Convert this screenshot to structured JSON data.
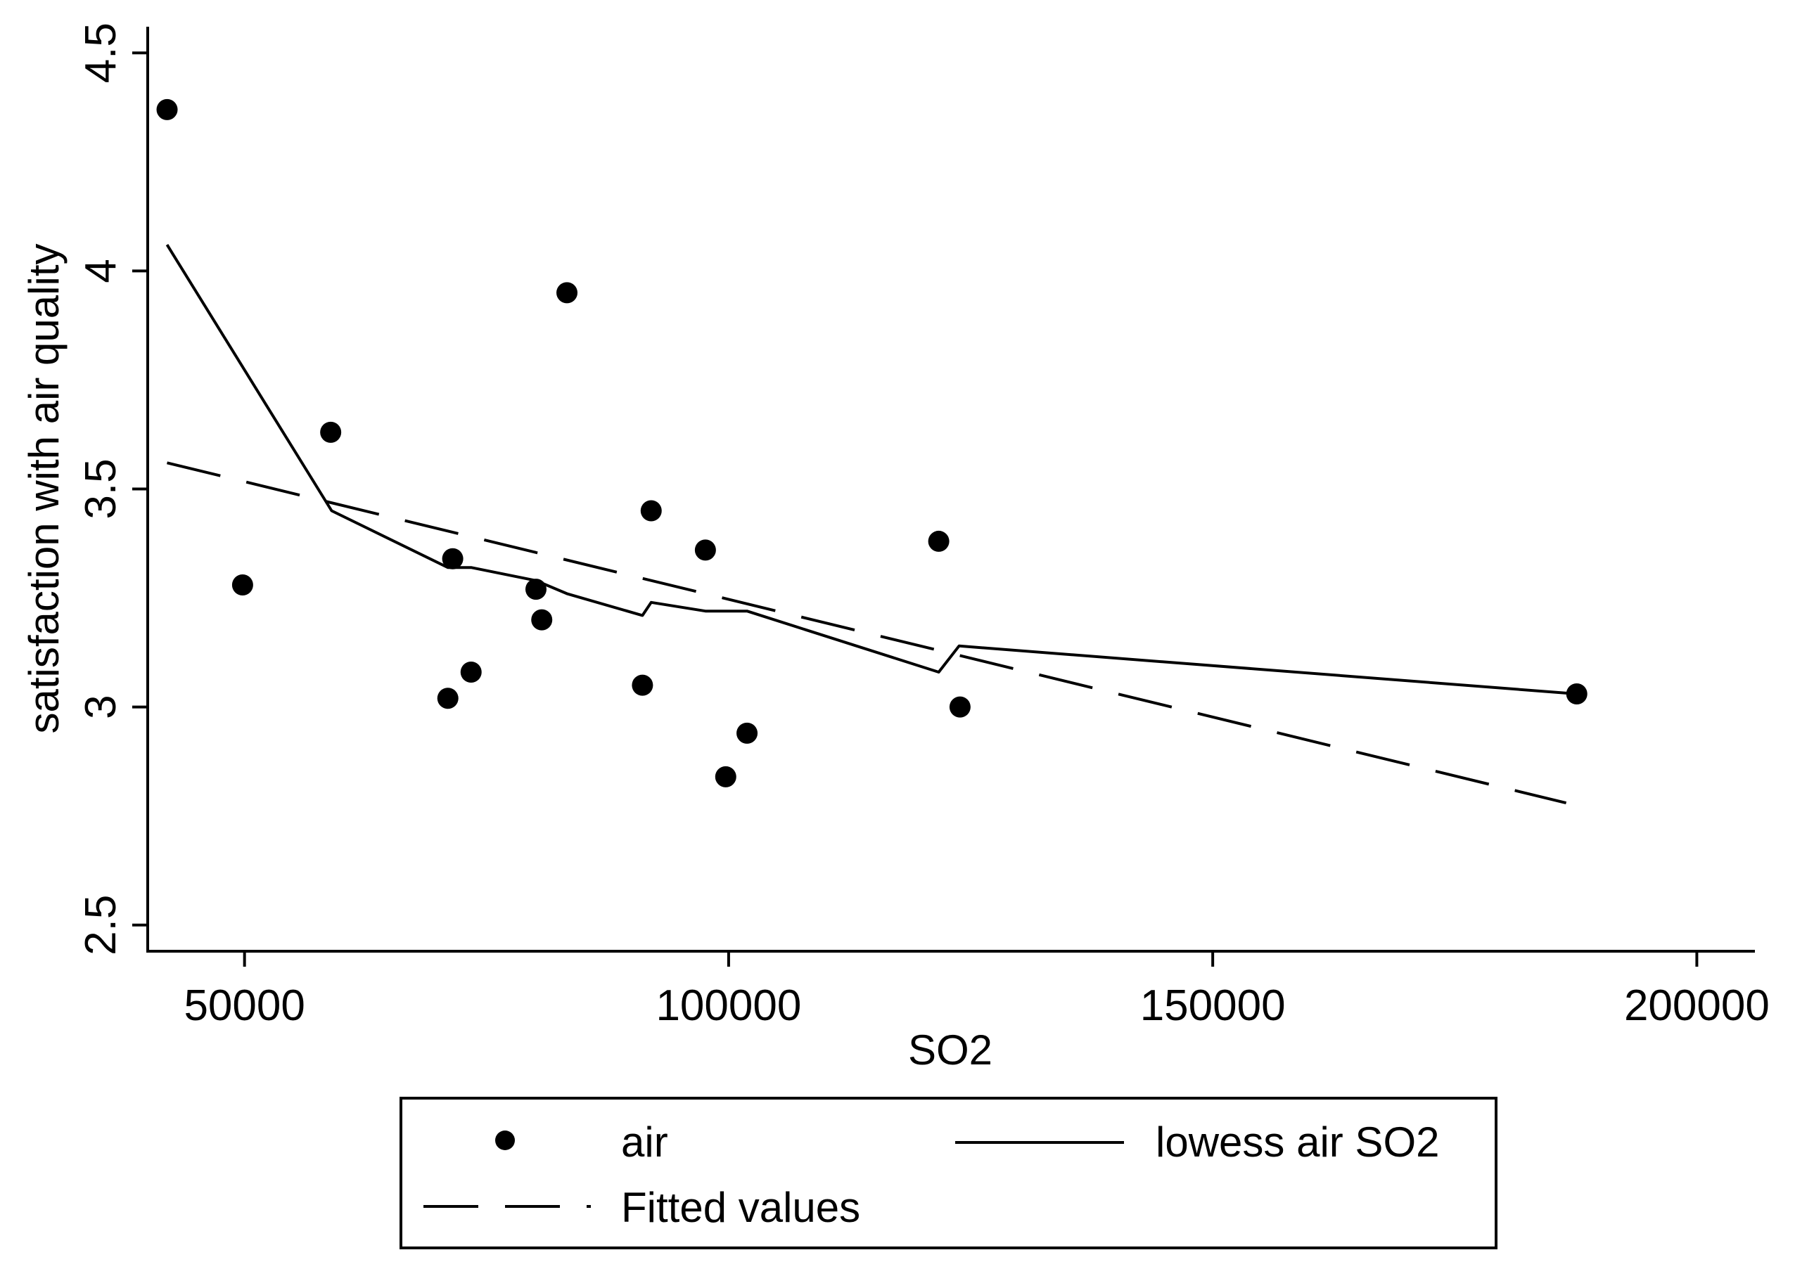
{
  "chart_data": {
    "type": "scatter",
    "title": "",
    "xlabel": "SO2",
    "ylabel": "satisfaction with air quality",
    "xlim": [
      40000,
      206000
    ],
    "ylim": [
      2.44,
      4.56
    ],
    "xticks": [
      50000,
      100000,
      150000,
      200000
    ],
    "xtick_labels": [
      "50000",
      "100000",
      "150000",
      "200000"
    ],
    "yticks": [
      2.5,
      3,
      3.5,
      4,
      4.5
    ],
    "ytick_labels": [
      "2.5",
      "3",
      "3.5",
      "4",
      "4.5"
    ],
    "grid": false,
    "legend_position": "bottom",
    "series": [
      {
        "name": "air",
        "kind": "scatter",
        "points": [
          {
            "x": 42000,
            "y": 4.37
          },
          {
            "x": 49800,
            "y": 3.28
          },
          {
            "x": 58900,
            "y": 3.63
          },
          {
            "x": 71000,
            "y": 3.02
          },
          {
            "x": 71500,
            "y": 3.34
          },
          {
            "x": 73400,
            "y": 3.08
          },
          {
            "x": 80100,
            "y": 3.27
          },
          {
            "x": 80700,
            "y": 3.2
          },
          {
            "x": 83300,
            "y": 3.95
          },
          {
            "x": 91100,
            "y": 3.05
          },
          {
            "x": 92000,
            "y": 3.45
          },
          {
            "x": 97600,
            "y": 3.36
          },
          {
            "x": 99700,
            "y": 2.84
          },
          {
            "x": 101900,
            "y": 2.94
          },
          {
            "x": 121700,
            "y": 3.38
          },
          {
            "x": 123900,
            "y": 3.0
          },
          {
            "x": 187600,
            "y": 3.03
          }
        ]
      },
      {
        "name": "lowess air SO2",
        "kind": "line",
        "points": [
          {
            "x": 42000,
            "y": 4.06
          },
          {
            "x": 59000,
            "y": 3.45
          },
          {
            "x": 71000,
            "y": 3.32
          },
          {
            "x": 73400,
            "y": 3.32
          },
          {
            "x": 80100,
            "y": 3.29
          },
          {
            "x": 83300,
            "y": 3.26
          },
          {
            "x": 91100,
            "y": 3.21
          },
          {
            "x": 92000,
            "y": 3.24
          },
          {
            "x": 97600,
            "y": 3.22
          },
          {
            "x": 101900,
            "y": 3.22
          },
          {
            "x": 121700,
            "y": 3.08
          },
          {
            "x": 123800,
            "y": 3.14
          },
          {
            "x": 187600,
            "y": 3.03
          }
        ]
      },
      {
        "name": "Fitted values",
        "kind": "line",
        "dashed": true,
        "points": [
          {
            "x": 42000,
            "y": 3.56
          },
          {
            "x": 186500,
            "y": 2.78
          }
        ]
      }
    ]
  }
}
